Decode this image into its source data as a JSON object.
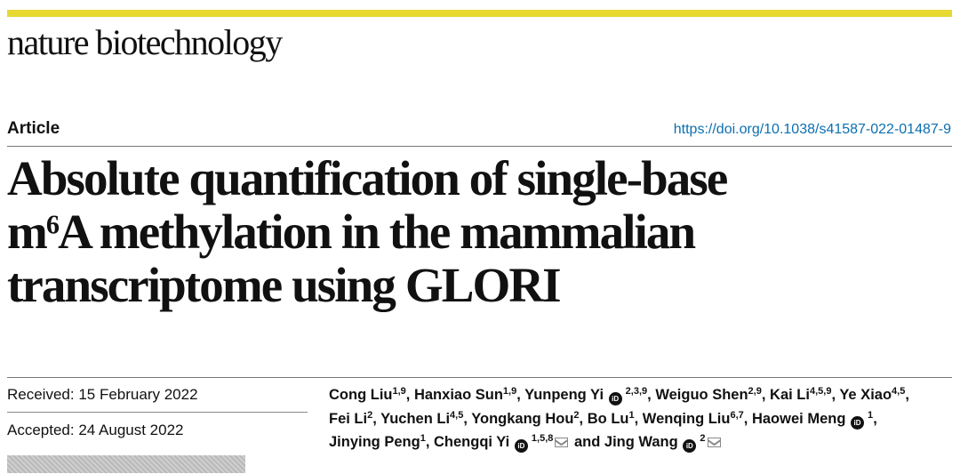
{
  "journal": {
    "name": "nature biotechnology"
  },
  "article": {
    "type": "Article",
    "doi": "https://doi.org/10.1038/s41587-022-01487-9",
    "title": {
      "line1": "Absolute quantification of single-base",
      "line2_pre": "m",
      "line2_sup": "6",
      "line2_post": "A methylation in the mammalian",
      "line3": "transcriptome using GLORI"
    }
  },
  "dates": {
    "received": "Received: 15 February 2022",
    "accepted": "Accepted: 24 August 2022"
  },
  "authors": [
    {
      "name": "Cong Liu",
      "aff": "1,9",
      "orcid": false,
      "mail": false,
      "sep": ","
    },
    {
      "name": "Hanxiao Sun",
      "aff": "1,9",
      "orcid": false,
      "mail": false,
      "sep": ","
    },
    {
      "name": "Yunpeng Yi",
      "aff": "2,3,9",
      "orcid": true,
      "mail": false,
      "sep": ","
    },
    {
      "name": "Weiguo Shen",
      "aff": "2,9",
      "orcid": false,
      "mail": false,
      "sep": ","
    },
    {
      "name": "Kai Li",
      "aff": "4,5,9",
      "orcid": false,
      "mail": false,
      "sep": ","
    },
    {
      "name": "Ye Xiao",
      "aff": "4,5",
      "orcid": false,
      "mail": false,
      "sep": ","
    },
    {
      "name": "Fei Li",
      "aff": "2",
      "orcid": false,
      "mail": false,
      "sep": ","
    },
    {
      "name": "Yuchen Li",
      "aff": "4,5",
      "orcid": false,
      "mail": false,
      "sep": ","
    },
    {
      "name": "Yongkang Hou",
      "aff": "2",
      "orcid": false,
      "mail": false,
      "sep": ","
    },
    {
      "name": "Bo Lu",
      "aff": "1",
      "orcid": false,
      "mail": false,
      "sep": ","
    },
    {
      "name": "Wenqing Liu",
      "aff": "6,7",
      "orcid": false,
      "mail": false,
      "sep": ","
    },
    {
      "name": "Haowei Meng",
      "aff": "1",
      "orcid": true,
      "mail": false,
      "sep": ","
    },
    {
      "name": "Jinying Peng",
      "aff": "1",
      "orcid": false,
      "mail": false,
      "sep": ","
    },
    {
      "name": "Chengqi Yi",
      "aff": "1,5,8",
      "orcid": true,
      "mail": true,
      "sep": ""
    },
    {
      "name": "Jing Wang",
      "aff": "2",
      "orcid": true,
      "mail": true,
      "sep": ""
    }
  ],
  "authors_conjunction": "and",
  "icons": {
    "orcid": "orcid-icon",
    "mail": "envelope-icon",
    "orcid_glyph": "iD"
  },
  "colors": {
    "accent_bar": "#e7d832",
    "doi_link": "#0b6fb0",
    "text": "#111111"
  }
}
